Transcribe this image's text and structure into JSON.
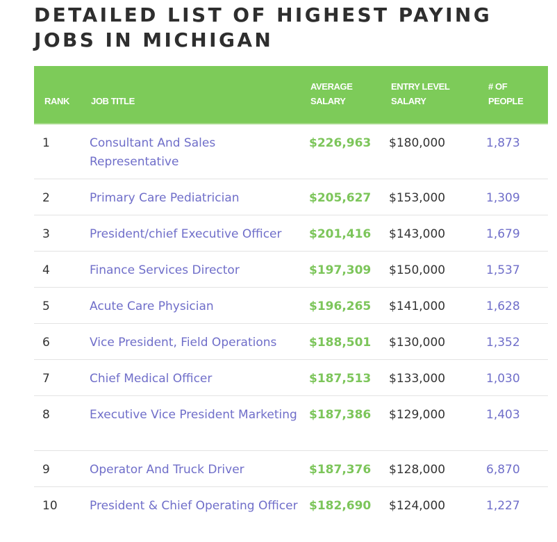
{
  "page": {
    "title": "DETAILED LIST OF HIGHEST PAYING JOBS IN MICHIGAN"
  },
  "table": {
    "headers": {
      "rank": "RANK",
      "job_title": "JOB TITLE",
      "average_salary": "AVERAGE SALARY",
      "entry_level_salary": "ENTRY LEVEL SALARY",
      "num_people": "# OF PEOPLE"
    },
    "colors": {
      "header_bg": "#7dcb59",
      "link": "#6f6ec9",
      "salary": "#7cc55a"
    },
    "rows": [
      {
        "rank": "1",
        "job_title": "Consultant And Sales Representative",
        "average_salary": "$226,963",
        "entry_level_salary": "$180,000",
        "num_people": "1,873"
      },
      {
        "rank": "2",
        "job_title": "Primary Care Pediatrician",
        "average_salary": "$205,627",
        "entry_level_salary": "$153,000",
        "num_people": "1,309"
      },
      {
        "rank": "3",
        "job_title": "President/chief Executive Officer",
        "average_salary": "$201,416",
        "entry_level_salary": "$143,000",
        "num_people": "1,679"
      },
      {
        "rank": "4",
        "job_title": "Finance Services Director",
        "average_salary": "$197,309",
        "entry_level_salary": "$150,000",
        "num_people": "1,537"
      },
      {
        "rank": "5",
        "job_title": "Acute Care Physician",
        "average_salary": "$196,265",
        "entry_level_salary": "$141,000",
        "num_people": "1,628"
      },
      {
        "rank": "6",
        "job_title": "Vice President, Field Operations",
        "average_salary": "$188,501",
        "entry_level_salary": "$130,000",
        "num_people": "1,352"
      },
      {
        "rank": "7",
        "job_title": "Chief Medical Officer",
        "average_salary": "$187,513",
        "entry_level_salary": "$133,000",
        "num_people": "1,030"
      },
      {
        "rank": "8",
        "job_title": "Executive Vice President Marketing",
        "average_salary": "$187,386",
        "entry_level_salary": "$129,000",
        "num_people": "1,403"
      },
      {
        "rank": "9",
        "job_title": "Operator And Truck Driver",
        "average_salary": "$187,376",
        "entry_level_salary": "$128,000",
        "num_people": "6,870"
      },
      {
        "rank": "10",
        "job_title": "President & Chief Operating Officer",
        "average_salary": "$182,690",
        "entry_level_salary": "$124,000",
        "num_people": "1,227"
      }
    ]
  }
}
